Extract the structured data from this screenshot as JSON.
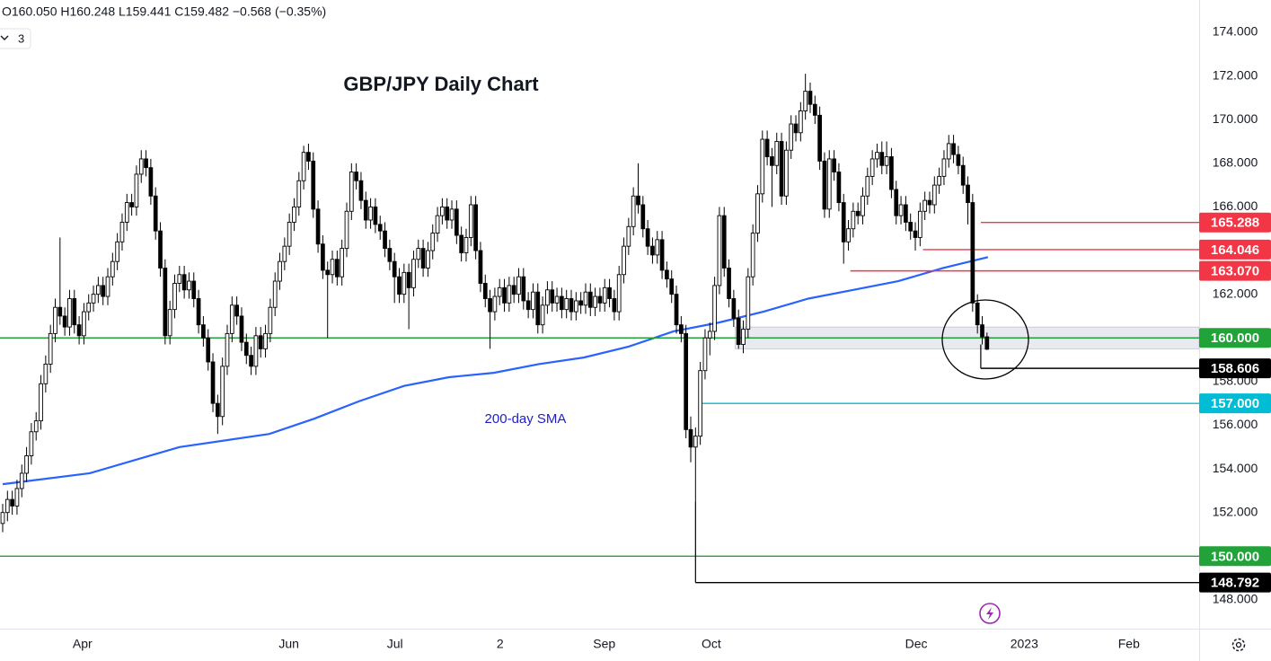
{
  "chart_data": {
    "type": "candlestick",
    "title": "GBP/JPY Daily Chart",
    "legend_text": "O160.050 H160.248 L159.441 C159.482 −0.568 (−0.35%)",
    "ui": {
      "collapse_label": "3"
    },
    "annotation": "200-day SMA",
    "xlim": [
      -0.56,
      250.4
    ],
    "ylim": [
      146.68,
      175.48
    ],
    "xticks": [
      {
        "value": 16.7,
        "label": "Apr"
      },
      {
        "value": 59.9,
        "label": "Jun"
      },
      {
        "value": 82.1,
        "label": "Jul"
      },
      {
        "value": 104.1,
        "label": "2"
      },
      {
        "value": 125.9,
        "label": "Sep"
      },
      {
        "value": 148.3,
        "label": "Oct"
      },
      {
        "value": 191.2,
        "label": "Dec"
      },
      {
        "value": 213.8,
        "label": "2023"
      },
      {
        "value": 235.7,
        "label": "Feb"
      }
    ],
    "yticks": [
      {
        "value": 148,
        "label": "148.000"
      },
      {
        "value": 150,
        "label": "150.000"
      },
      {
        "value": 152,
        "label": "152.000"
      },
      {
        "value": 154,
        "label": "154.000"
      },
      {
        "value": 156,
        "label": "156.000"
      },
      {
        "value": 158,
        "label": "158.000"
      },
      {
        "value": 160,
        "label": "160.000"
      },
      {
        "value": 162,
        "label": "162.000"
      },
      {
        "value": 164,
        "label": "164.000"
      },
      {
        "value": 166,
        "label": "166.000"
      },
      {
        "value": 168,
        "label": "168.000"
      },
      {
        "value": 170,
        "label": "170.000"
      },
      {
        "value": 172,
        "label": "172.000"
      },
      {
        "value": 174,
        "label": "174.000"
      }
    ],
    "up_color": "#ffffff",
    "down_color": "#000000",
    "candles": [
      [
        151.5,
        152.4,
        151.1,
        152.0
      ],
      [
        152.0,
        153.0,
        151.6,
        152.6
      ],
      [
        152.6,
        153.0,
        151.9,
        152.3
      ],
      [
        152.3,
        153.5,
        151.9,
        153.1
      ],
      [
        153.1,
        154.2,
        152.7,
        153.8
      ],
      [
        153.8,
        155.0,
        153.4,
        154.6
      ],
      [
        154.6,
        156.1,
        154.2,
        155.7
      ],
      [
        155.7,
        156.6,
        155.3,
        156.2
      ],
      [
        156.2,
        158.3,
        155.8,
        157.9
      ],
      [
        157.9,
        159.2,
        157.5,
        158.8
      ],
      [
        158.8,
        160.6,
        158.4,
        160.2
      ],
      [
        160.2,
        161.8,
        159.8,
        161.4
      ],
      [
        161.4,
        164.6,
        160.6,
        161.0
      ],
      [
        161.0,
        161.4,
        160.1,
        160.5
      ],
      [
        160.5,
        162.2,
        160.1,
        161.8
      ],
      [
        161.8,
        162.2,
        160.2,
        160.6
      ],
      [
        160.6,
        161.0,
        159.7,
        160.1
      ],
      [
        160.1,
        161.6,
        159.7,
        161.2
      ],
      [
        161.2,
        162.0,
        160.8,
        161.6
      ],
      [
        161.6,
        162.4,
        161.2,
        162.0
      ],
      [
        162.0,
        162.8,
        161.6,
        162.4
      ],
      [
        162.4,
        162.8,
        161.5,
        161.9
      ],
      [
        161.9,
        163.2,
        161.5,
        162.8
      ],
      [
        162.8,
        163.9,
        162.4,
        163.5
      ],
      [
        163.5,
        164.8,
        163.1,
        164.4
      ],
      [
        164.4,
        165.7,
        164.0,
        165.3
      ],
      [
        165.3,
        166.6,
        164.9,
        166.2
      ],
      [
        166.2,
        166.6,
        165.6,
        166.0
      ],
      [
        166.0,
        167.9,
        165.6,
        167.5
      ],
      [
        167.5,
        168.6,
        167.1,
        168.2
      ],
      [
        168.2,
        168.6,
        167.4,
        167.8
      ],
      [
        167.8,
        168.2,
        166.1,
        166.5
      ],
      [
        166.5,
        166.9,
        164.5,
        164.9
      ],
      [
        164.9,
        165.3,
        162.8,
        163.2
      ],
      [
        163.2,
        163.6,
        159.7,
        160.1
      ],
      [
        160.1,
        161.7,
        159.7,
        161.3
      ],
      [
        161.3,
        162.9,
        160.9,
        162.5
      ],
      [
        162.5,
        163.3,
        162.1,
        162.9
      ],
      [
        162.9,
        163.3,
        161.8,
        162.2
      ],
      [
        162.2,
        163.0,
        161.8,
        162.6
      ],
      [
        162.6,
        163.0,
        161.4,
        161.8
      ],
      [
        161.8,
        162.2,
        160.2,
        160.6
      ],
      [
        160.6,
        161.0,
        159.6,
        160.0
      ],
      [
        160.0,
        160.4,
        158.5,
        158.9
      ],
      [
        158.9,
        159.3,
        156.6,
        157.0
      ],
      [
        157.0,
        157.4,
        155.6,
        156.4
      ],
      [
        156.4,
        159.1,
        156.0,
        158.7
      ],
      [
        158.7,
        160.6,
        158.3,
        160.2
      ],
      [
        160.2,
        161.9,
        159.8,
        161.5
      ],
      [
        161.5,
        161.9,
        160.6,
        161.0
      ],
      [
        161.0,
        161.4,
        159.4,
        159.8
      ],
      [
        159.8,
        160.2,
        158.8,
        159.2
      ],
      [
        159.2,
        159.6,
        158.3,
        158.7
      ],
      [
        158.7,
        160.5,
        158.3,
        160.1
      ],
      [
        160.1,
        160.5,
        159.1,
        159.5
      ],
      [
        159.5,
        160.6,
        159.1,
        160.2
      ],
      [
        160.2,
        161.8,
        159.8,
        161.4
      ],
      [
        161.4,
        163.0,
        161.0,
        162.6
      ],
      [
        162.6,
        163.9,
        162.2,
        163.5
      ],
      [
        163.5,
        164.6,
        163.1,
        164.2
      ],
      [
        164.2,
        165.7,
        163.8,
        165.3
      ],
      [
        165.3,
        166.4,
        164.9,
        166.0
      ],
      [
        166.0,
        167.6,
        165.6,
        167.2
      ],
      [
        167.2,
        168.8,
        166.8,
        168.5
      ],
      [
        168.5,
        168.9,
        167.7,
        168.1
      ],
      [
        168.1,
        168.5,
        165.5,
        165.9
      ],
      [
        165.9,
        166.3,
        163.9,
        164.3
      ],
      [
        164.3,
        164.7,
        162.7,
        163.1
      ],
      [
        163.1,
        163.5,
        160.0,
        162.9
      ],
      [
        162.9,
        164.0,
        162.5,
        163.6
      ],
      [
        163.6,
        164.0,
        162.4,
        162.8
      ],
      [
        162.8,
        164.5,
        162.4,
        164.1
      ],
      [
        164.1,
        166.2,
        163.7,
        165.8
      ],
      [
        165.8,
        168.0,
        165.4,
        167.6
      ],
      [
        167.6,
        168.0,
        166.8,
        167.2
      ],
      [
        167.2,
        167.6,
        165.9,
        166.3
      ],
      [
        166.3,
        166.7,
        165.0,
        165.4
      ],
      [
        165.4,
        166.4,
        165.0,
        166.0
      ],
      [
        166.0,
        166.4,
        164.8,
        165.2
      ],
      [
        165.2,
        165.6,
        164.5,
        164.9
      ],
      [
        164.9,
        165.3,
        163.7,
        164.1
      ],
      [
        164.1,
        164.5,
        163.1,
        163.5
      ],
      [
        163.5,
        163.9,
        161.6,
        162.8
      ],
      [
        162.8,
        163.2,
        161.6,
        162.0
      ],
      [
        162.0,
        163.4,
        161.6,
        163.0
      ],
      [
        163.0,
        163.4,
        160.4,
        162.3
      ],
      [
        162.3,
        164.0,
        161.9,
        163.6
      ],
      [
        163.6,
        164.5,
        163.2,
        164.1
      ],
      [
        164.1,
        164.5,
        162.8,
        163.2
      ],
      [
        163.2,
        164.4,
        162.8,
        164.0
      ],
      [
        164.0,
        165.2,
        163.6,
        164.8
      ],
      [
        164.8,
        166.0,
        164.4,
        165.6
      ],
      [
        165.6,
        166.4,
        165.2,
        166.0
      ],
      [
        166.0,
        166.4,
        165.0,
        165.4
      ],
      [
        165.4,
        166.3,
        165.0,
        165.9
      ],
      [
        165.9,
        166.3,
        164.3,
        164.7
      ],
      [
        164.7,
        165.1,
        163.5,
        163.9
      ],
      [
        163.9,
        165.0,
        163.5,
        164.6
      ],
      [
        164.6,
        166.5,
        164.2,
        166.1
      ],
      [
        166.1,
        166.5,
        163.6,
        164.0
      ],
      [
        164.0,
        164.4,
        162.1,
        162.5
      ],
      [
        162.5,
        162.9,
        161.4,
        161.8
      ],
      [
        161.8,
        162.2,
        159.5,
        161.2
      ],
      [
        161.2,
        162.3,
        160.8,
        161.9
      ],
      [
        161.9,
        162.7,
        161.5,
        162.3
      ],
      [
        162.3,
        162.7,
        161.2,
        161.6
      ],
      [
        161.6,
        162.8,
        161.2,
        162.4
      ],
      [
        162.4,
        162.8,
        161.6,
        162.0
      ],
      [
        162.0,
        163.2,
        161.6,
        162.8
      ],
      [
        162.8,
        163.2,
        161.3,
        161.7
      ],
      [
        161.7,
        162.1,
        160.9,
        161.3
      ],
      [
        161.3,
        162.5,
        160.9,
        162.1
      ],
      [
        162.1,
        162.5,
        160.2,
        160.6
      ],
      [
        160.6,
        161.9,
        160.2,
        161.5
      ],
      [
        161.5,
        162.6,
        161.1,
        162.2
      ],
      [
        162.2,
        162.6,
        161.2,
        161.6
      ],
      [
        161.6,
        162.3,
        161.2,
        161.9
      ],
      [
        161.9,
        162.3,
        160.9,
        161.3
      ],
      [
        161.3,
        162.2,
        160.9,
        161.8
      ],
      [
        161.8,
        162.2,
        160.8,
        161.2
      ],
      [
        161.2,
        162.1,
        160.8,
        161.7
      ],
      [
        161.7,
        162.1,
        161.1,
        161.5
      ],
      [
        161.5,
        162.5,
        161.1,
        162.1
      ],
      [
        162.1,
        162.5,
        161.0,
        161.4
      ],
      [
        161.4,
        162.3,
        161.0,
        161.9
      ],
      [
        161.9,
        162.3,
        161.2,
        161.6
      ],
      [
        161.6,
        162.7,
        161.2,
        162.3
      ],
      [
        162.3,
        162.7,
        161.4,
        161.8
      ],
      [
        161.8,
        162.2,
        160.8,
        161.2
      ],
      [
        161.2,
        163.3,
        160.8,
        162.9
      ],
      [
        162.9,
        164.6,
        162.5,
        164.2
      ],
      [
        164.2,
        165.5,
        163.8,
        165.1
      ],
      [
        165.1,
        166.9,
        164.7,
        166.5
      ],
      [
        166.5,
        168.0,
        165.7,
        166.1
      ],
      [
        166.1,
        166.5,
        164.6,
        165.0
      ],
      [
        165.0,
        165.4,
        163.8,
        164.2
      ],
      [
        164.2,
        164.6,
        163.4,
        163.8
      ],
      [
        163.8,
        164.9,
        163.4,
        164.5
      ],
      [
        164.5,
        164.9,
        162.7,
        163.1
      ],
      [
        163.1,
        163.5,
        162.3,
        162.7
      ],
      [
        162.7,
        163.1,
        161.6,
        162.0
      ],
      [
        162.0,
        162.4,
        160.2,
        160.6
      ],
      [
        160.6,
        161.0,
        159.8,
        160.2
      ],
      [
        160.2,
        160.6,
        155.4,
        155.8
      ],
      [
        155.8,
        156.4,
        154.3,
        155.0
      ],
      [
        155.0,
        155.9,
        152.5,
        155.5
      ],
      [
        155.5,
        158.9,
        155.1,
        158.5
      ],
      [
        158.5,
        160.4,
        158.1,
        160.0
      ],
      [
        160.0,
        160.7,
        159.2,
        160.3
      ],
      [
        160.3,
        162.8,
        159.9,
        162.4
      ],
      [
        162.4,
        166.0,
        162.0,
        165.6
      ],
      [
        165.6,
        166.0,
        162.8,
        163.2
      ],
      [
        163.2,
        163.6,
        161.4,
        161.8
      ],
      [
        161.8,
        162.2,
        160.5,
        160.9
      ],
      [
        160.9,
        161.3,
        159.5,
        159.7
      ],
      [
        159.7,
        160.8,
        159.3,
        160.4
      ],
      [
        160.4,
        163.2,
        160.0,
        162.8
      ],
      [
        162.8,
        165.2,
        162.4,
        164.8
      ],
      [
        164.8,
        167.0,
        164.4,
        166.6
      ],
      [
        166.6,
        169.5,
        166.2,
        169.1
      ],
      [
        169.1,
        169.5,
        167.9,
        168.3
      ],
      [
        168.3,
        168.7,
        166.0,
        167.9
      ],
      [
        167.9,
        169.4,
        167.5,
        169.0
      ],
      [
        169.0,
        169.4,
        166.1,
        166.5
      ],
      [
        166.5,
        169.0,
        166.1,
        168.6
      ],
      [
        168.6,
        170.2,
        168.2,
        169.8
      ],
      [
        169.8,
        170.2,
        169.0,
        169.4
      ],
      [
        169.4,
        170.8,
        169.0,
        170.4
      ],
      [
        170.4,
        172.1,
        170.0,
        171.3
      ],
      [
        171.3,
        171.7,
        170.3,
        170.7
      ],
      [
        170.7,
        171.1,
        169.8,
        170.2
      ],
      [
        170.2,
        170.6,
        167.7,
        168.1
      ],
      [
        168.1,
        168.5,
        165.5,
        165.9
      ],
      [
        165.9,
        168.6,
        165.5,
        168.2
      ],
      [
        168.2,
        168.6,
        167.2,
        167.6
      ],
      [
        167.6,
        168.0,
        165.8,
        166.2
      ],
      [
        166.2,
        166.6,
        163.4,
        164.4
      ],
      [
        164.4,
        165.4,
        164.0,
        165.0
      ],
      [
        165.0,
        166.2,
        164.6,
        165.8
      ],
      [
        165.8,
        166.2,
        165.2,
        165.6
      ],
      [
        165.6,
        166.9,
        165.2,
        166.5
      ],
      [
        166.5,
        167.8,
        166.1,
        167.4
      ],
      [
        167.4,
        168.6,
        167.0,
        168.2
      ],
      [
        168.2,
        168.9,
        167.8,
        168.5
      ],
      [
        168.5,
        169.0,
        167.5,
        167.9
      ],
      [
        167.9,
        169.0,
        167.5,
        168.3
      ],
      [
        168.3,
        168.7,
        166.4,
        166.8
      ],
      [
        166.8,
        167.2,
        165.2,
        165.6
      ],
      [
        165.6,
        166.5,
        165.2,
        166.1
      ],
      [
        166.1,
        166.5,
        164.9,
        165.3
      ],
      [
        165.3,
        165.7,
        164.5,
        164.9
      ],
      [
        164.9,
        165.3,
        164.0,
        164.6
      ],
      [
        164.6,
        166.2,
        164.2,
        165.8
      ],
      [
        165.8,
        166.7,
        165.4,
        166.3
      ],
      [
        166.3,
        166.7,
        165.7,
        166.1
      ],
      [
        166.1,
        167.4,
        165.7,
        167.0
      ],
      [
        167.0,
        167.8,
        166.6,
        167.4
      ],
      [
        167.4,
        168.6,
        167.0,
        168.2
      ],
      [
        168.2,
        169.3,
        167.8,
        168.9
      ],
      [
        168.9,
        169.3,
        168.0,
        168.4
      ],
      [
        168.4,
        168.8,
        167.5,
        167.9
      ],
      [
        167.9,
        168.3,
        166.6,
        167.0
      ],
      [
        167.0,
        167.4,
        165.2,
        166.2
      ],
      [
        166.2,
        166.6,
        161.2,
        161.6
      ],
      [
        161.6,
        162.0,
        160.2,
        160.6
      ],
      [
        160.6,
        161.0,
        159.7,
        160.05
      ],
      [
        160.05,
        160.248,
        159.441,
        159.482
      ]
    ],
    "sma": {
      "name": "200-day SMA",
      "color": "#2962ff",
      "x": [
        0,
        18.2,
        37,
        55.8,
        65.2,
        74.6,
        84,
        93.4,
        102.8,
        112.2,
        121.6,
        131,
        140.4,
        149.8,
        159.2,
        168.6,
        178,
        187.4,
        196.8,
        206.2
      ],
      "values": [
        153.3,
        153.8,
        155.0,
        155.6,
        156.3,
        157.1,
        157.8,
        158.2,
        158.4,
        158.8,
        159.1,
        159.6,
        160.3,
        160.7,
        161.2,
        161.8,
        162.2,
        162.6,
        163.2,
        163.7
      ]
    },
    "zone": {
      "low": 159.5,
      "high": 160.5,
      "from": 153.3,
      "color": "#e0e3eb"
    },
    "levels": [
      {
        "value": 165.288,
        "label": "165.288",
        "color": "#f23645",
        "from": 204.7,
        "drop": false
      },
      {
        "value": 164.046,
        "label": "164.046",
        "color": "#f23645",
        "from": 192.6,
        "drop": false
      },
      {
        "value": 163.07,
        "label": "163.070",
        "color": "#f23645",
        "from": 177.4,
        "drop": false
      },
      {
        "value": 160,
        "label": "160.000",
        "color": "#22a33a",
        "from": null,
        "drop": false
      },
      {
        "value": 158.606,
        "label": "158.606",
        "color": "#000000",
        "from": 204.7,
        "drop": true
      },
      {
        "value": 157,
        "label": "157.000",
        "color": "#00bcd4",
        "from": 146,
        "drop": false
      },
      {
        "value": 150,
        "label": "150.000",
        "color": "#22a33a",
        "from": null,
        "drop": false
      },
      {
        "value": 148.792,
        "label": "148.792",
        "color": "#000000",
        "from": 145,
        "drop": true
      }
    ]
  }
}
